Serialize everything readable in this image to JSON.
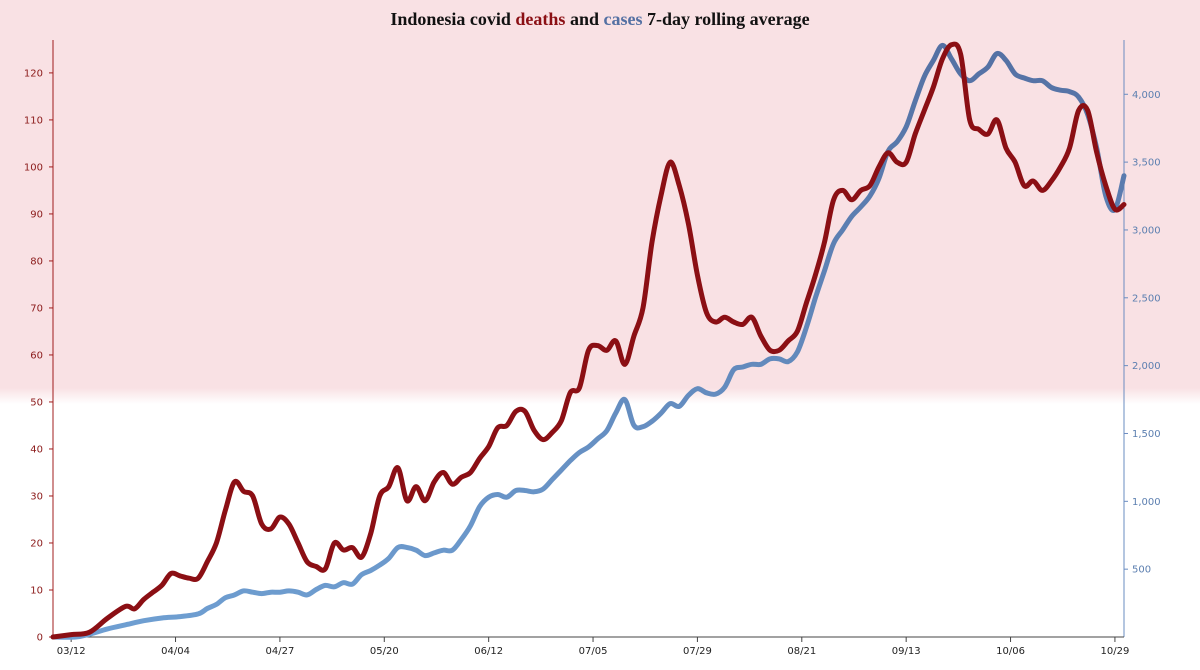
{
  "title": {
    "part1": "Indonesia covid ",
    "deaths_word": "deaths",
    "part2": " and ",
    "cases_word": "cases",
    "part3": " 7-day rolling average"
  },
  "colors": {
    "deaths": "#8b0f14",
    "cases_light": "#6f9fd2",
    "cases_dark": "#5470a3",
    "band": "#f9e1e4",
    "left_axis": "#a01c1c",
    "right_axis": "#6a8cc0"
  },
  "chart_data": {
    "type": "line",
    "title": "Indonesia covid deaths and cases 7-day rolling average",
    "x_range": [
      0,
      236
    ],
    "x_ticks": [
      {
        "day": 4,
        "label": "03/12"
      },
      {
        "day": 27,
        "label": "04/04"
      },
      {
        "day": 50,
        "label": "04/27"
      },
      {
        "day": 73,
        "label": "05/20"
      },
      {
        "day": 96,
        "label": "06/12"
      },
      {
        "day": 119,
        "label": "07/05"
      },
      {
        "day": 142,
        "label": "07/29"
      },
      {
        "day": 165,
        "label": "08/21"
      },
      {
        "day": 188,
        "label": "09/13"
      },
      {
        "day": 211,
        "label": "10/06"
      },
      {
        "day": 234,
        "label": "10/29"
      }
    ],
    "left_axis": {
      "min": 0,
      "max": 127,
      "ticks": [
        0,
        10,
        20,
        30,
        40,
        50,
        60,
        70,
        80,
        90,
        100,
        110,
        120
      ]
    },
    "right_axis": {
      "min": 0,
      "max": 4400,
      "ticks": [
        500,
        1000,
        1500,
        2000,
        2500,
        3000,
        3500,
        4000
      ],
      "tick_labels": [
        "500",
        "1,000",
        "1,500",
        "2,000",
        "2,500",
        "3,000",
        "3,500",
        "4,000"
      ]
    },
    "band_threshold_left": 50,
    "grid": false,
    "series": [
      {
        "key": "deaths",
        "axis": "left",
        "points": [
          [
            0,
            0
          ],
          [
            4,
            0.5
          ],
          [
            8,
            1
          ],
          [
            12,
            4
          ],
          [
            16,
            6.5
          ],
          [
            18,
            6
          ],
          [
            20,
            8
          ],
          [
            22,
            9.5
          ],
          [
            24,
            11
          ],
          [
            26,
            13.5
          ],
          [
            28,
            13
          ],
          [
            30,
            12.5
          ],
          [
            32,
            12.5
          ],
          [
            34,
            16
          ],
          [
            36,
            20
          ],
          [
            38,
            27
          ],
          [
            40,
            33
          ],
          [
            42,
            31
          ],
          [
            44,
            30
          ],
          [
            46,
            24
          ],
          [
            48,
            23
          ],
          [
            50,
            25.5
          ],
          [
            52,
            24
          ],
          [
            54,
            20
          ],
          [
            56,
            16
          ],
          [
            58,
            15
          ],
          [
            60,
            14.5
          ],
          [
            62,
            20
          ],
          [
            64,
            18.5
          ],
          [
            66,
            19
          ],
          [
            68,
            17
          ],
          [
            70,
            22
          ],
          [
            72,
            30
          ],
          [
            74,
            32
          ],
          [
            76,
            36
          ],
          [
            78,
            29
          ],
          [
            80,
            32
          ],
          [
            82,
            29
          ],
          [
            84,
            33
          ],
          [
            86,
            35
          ],
          [
            88,
            32.5
          ],
          [
            90,
            34
          ],
          [
            92,
            35
          ],
          [
            94,
            38
          ],
          [
            96,
            40.5
          ],
          [
            98,
            44.5
          ],
          [
            100,
            45
          ],
          [
            102,
            48
          ],
          [
            104,
            48
          ],
          [
            106,
            44
          ],
          [
            108,
            42
          ],
          [
            110,
            43.5
          ],
          [
            112,
            46
          ],
          [
            114,
            52
          ],
          [
            116,
            53
          ],
          [
            118,
            61
          ],
          [
            120,
            62
          ],
          [
            122,
            61
          ],
          [
            124,
            63
          ],
          [
            126,
            58
          ],
          [
            128,
            64
          ],
          [
            130,
            70
          ],
          [
            132,
            84
          ],
          [
            134,
            94
          ],
          [
            136,
            101
          ],
          [
            138,
            96
          ],
          [
            140,
            88
          ],
          [
            142,
            77
          ],
          [
            144,
            69
          ],
          [
            146,
            67
          ],
          [
            148,
            68
          ],
          [
            150,
            67
          ],
          [
            152,
            66.5
          ],
          [
            154,
            68
          ],
          [
            156,
            64
          ],
          [
            158,
            61
          ],
          [
            160,
            61
          ],
          [
            162,
            63
          ],
          [
            164,
            65
          ],
          [
            166,
            71
          ],
          [
            168,
            77
          ],
          [
            170,
            84
          ],
          [
            172,
            93
          ],
          [
            174,
            95
          ],
          [
            176,
            93
          ],
          [
            178,
            95
          ],
          [
            180,
            96
          ],
          [
            182,
            100
          ],
          [
            184,
            103
          ],
          [
            186,
            101
          ],
          [
            188,
            101
          ],
          [
            190,
            107
          ],
          [
            192,
            112
          ],
          [
            194,
            117
          ],
          [
            196,
            123
          ],
          [
            198,
            126
          ],
          [
            200,
            124
          ],
          [
            202,
            110
          ],
          [
            204,
            108
          ],
          [
            206,
            107
          ],
          [
            208,
            110
          ],
          [
            210,
            104
          ],
          [
            212,
            101
          ],
          [
            214,
            96
          ],
          [
            216,
            97
          ],
          [
            218,
            95
          ],
          [
            220,
            97
          ],
          [
            222,
            100
          ],
          [
            224,
            104
          ],
          [
            226,
            112
          ],
          [
            228,
            112
          ],
          [
            230,
            103
          ],
          [
            232,
            96
          ],
          [
            234,
            91
          ],
          [
            236,
            92
          ]
        ]
      },
      {
        "key": "cases",
        "axis": "right",
        "points": [
          [
            0,
            0
          ],
          [
            5,
            0
          ],
          [
            8,
            20
          ],
          [
            12,
            60
          ],
          [
            16,
            90
          ],
          [
            20,
            120
          ],
          [
            24,
            140
          ],
          [
            28,
            150
          ],
          [
            32,
            170
          ],
          [
            34,
            210
          ],
          [
            36,
            240
          ],
          [
            38,
            290
          ],
          [
            40,
            310
          ],
          [
            42,
            340
          ],
          [
            44,
            330
          ],
          [
            46,
            320
          ],
          [
            48,
            330
          ],
          [
            50,
            330
          ],
          [
            52,
            340
          ],
          [
            54,
            330
          ],
          [
            56,
            310
          ],
          [
            58,
            350
          ],
          [
            60,
            380
          ],
          [
            62,
            370
          ],
          [
            64,
            400
          ],
          [
            66,
            390
          ],
          [
            68,
            460
          ],
          [
            70,
            490
          ],
          [
            72,
            530
          ],
          [
            74,
            580
          ],
          [
            76,
            660
          ],
          [
            78,
            660
          ],
          [
            80,
            640
          ],
          [
            82,
            600
          ],
          [
            84,
            620
          ],
          [
            86,
            640
          ],
          [
            88,
            640
          ],
          [
            90,
            720
          ],
          [
            92,
            820
          ],
          [
            94,
            960
          ],
          [
            96,
            1030
          ],
          [
            98,
            1050
          ],
          [
            100,
            1030
          ],
          [
            102,
            1080
          ],
          [
            104,
            1080
          ],
          [
            106,
            1070
          ],
          [
            108,
            1090
          ],
          [
            110,
            1160
          ],
          [
            112,
            1230
          ],
          [
            114,
            1300
          ],
          [
            116,
            1360
          ],
          [
            118,
            1400
          ],
          [
            120,
            1460
          ],
          [
            122,
            1520
          ],
          [
            124,
            1650
          ],
          [
            126,
            1750
          ],
          [
            128,
            1560
          ],
          [
            130,
            1550
          ],
          [
            132,
            1590
          ],
          [
            134,
            1650
          ],
          [
            136,
            1720
          ],
          [
            138,
            1700
          ],
          [
            140,
            1780
          ],
          [
            142,
            1830
          ],
          [
            144,
            1800
          ],
          [
            146,
            1790
          ],
          [
            148,
            1840
          ],
          [
            150,
            1970
          ],
          [
            152,
            1990
          ],
          [
            154,
            2010
          ],
          [
            156,
            2010
          ],
          [
            158,
            2050
          ],
          [
            160,
            2050
          ],
          [
            162,
            2030
          ],
          [
            164,
            2100
          ],
          [
            166,
            2280
          ],
          [
            168,
            2500
          ],
          [
            170,
            2700
          ],
          [
            172,
            2900
          ],
          [
            174,
            3000
          ],
          [
            176,
            3100
          ],
          [
            178,
            3170
          ],
          [
            180,
            3250
          ],
          [
            182,
            3380
          ],
          [
            184,
            3580
          ],
          [
            186,
            3650
          ],
          [
            188,
            3760
          ],
          [
            190,
            3950
          ],
          [
            192,
            4130
          ],
          [
            194,
            4250
          ],
          [
            196,
            4360
          ],
          [
            198,
            4260
          ],
          [
            200,
            4150
          ],
          [
            202,
            4100
          ],
          [
            204,
            4150
          ],
          [
            206,
            4200
          ],
          [
            208,
            4300
          ],
          [
            210,
            4250
          ],
          [
            212,
            4150
          ],
          [
            214,
            4120
          ],
          [
            216,
            4100
          ],
          [
            218,
            4100
          ],
          [
            220,
            4050
          ],
          [
            222,
            4030
          ],
          [
            224,
            4020
          ],
          [
            226,
            3980
          ],
          [
            228,
            3850
          ],
          [
            230,
            3600
          ],
          [
            232,
            3250
          ],
          [
            234,
            3150
          ],
          [
            236,
            3400
          ]
        ]
      }
    ]
  }
}
